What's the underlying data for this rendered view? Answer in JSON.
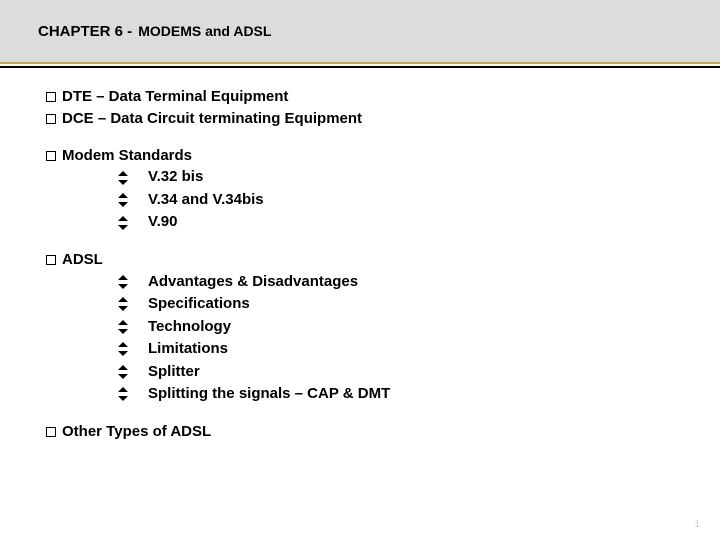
{
  "header": {
    "chapter": "CHAPTER 6 - ",
    "title": "MODEMS and ADSL"
  },
  "colors": {
    "header_bg": "#dcdcdc",
    "gold_rule": "#c9a84a",
    "black_rule": "#000000",
    "page_bg": "#ffffff",
    "text": "#000000"
  },
  "outline": [
    {
      "text": "DTE – Data Terminal Equipment",
      "sub": []
    },
    {
      "text": "DCE – Data Circuit terminating Equipment",
      "sub": []
    },
    {
      "spacer": true
    },
    {
      "text": "Modem Standards",
      "sub": [
        "V.32 bis",
        "V.34 and V.34bis",
        "V.90"
      ]
    },
    {
      "spacer": true
    },
    {
      "text": "ADSL",
      "sub": [
        "Advantages & Disadvantages",
        "Specifications",
        "Technology",
        "Limitations",
        "Splitter",
        "Splitting the signals – CAP & DMT"
      ]
    },
    {
      "spacer": true
    },
    {
      "text": "Other Types of ADSL",
      "sub": []
    }
  ],
  "page_number": "1"
}
